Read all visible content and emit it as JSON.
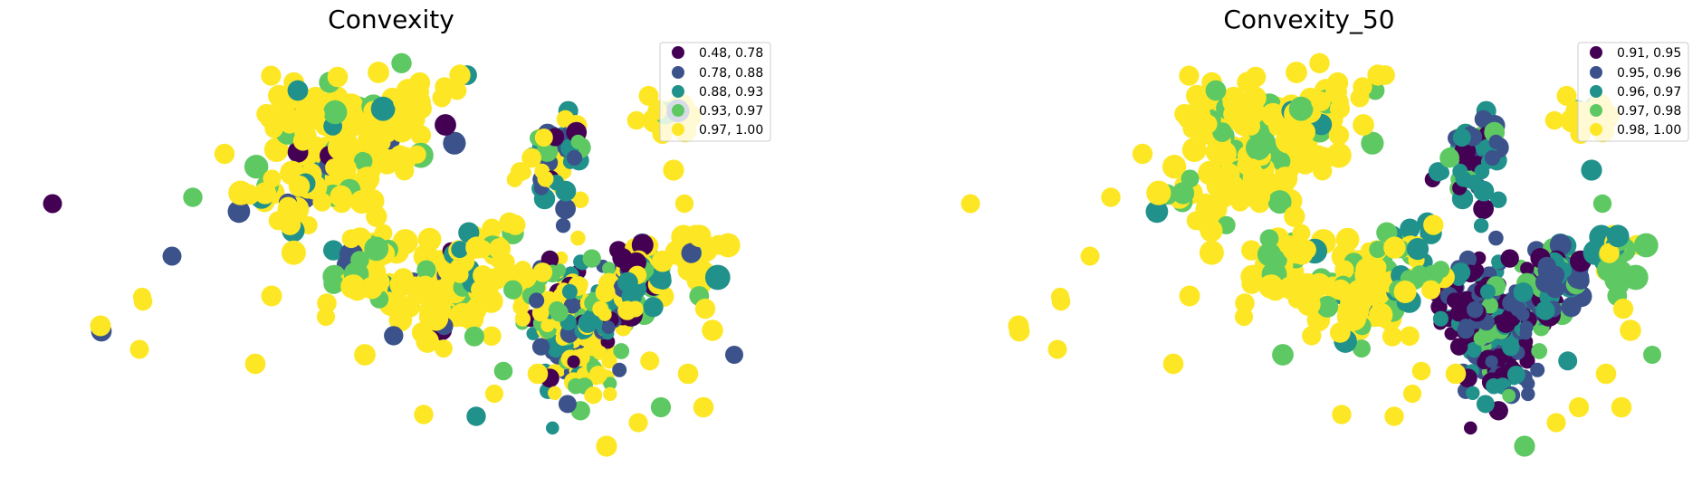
{
  "figure": {
    "panels": [
      {
        "title": "Convexity",
        "legend": [
          {
            "label": "0.48, 0.78",
            "color": "#440154"
          },
          {
            "label": "0.78, 0.88",
            "color": "#3b528b"
          },
          {
            "label": "0.88, 0.93",
            "color": "#21918c"
          },
          {
            "label": "0.93, 0.97",
            "color": "#5ec962"
          },
          {
            "label": "0.97, 1.00",
            "color": "#fde725"
          }
        ]
      },
      {
        "title": "Convexity_50",
        "legend": [
          {
            "label": "0.91, 0.95",
            "color": "#440154"
          },
          {
            "label": "0.95, 0.96",
            "color": "#3b528b"
          },
          {
            "label": "0.96, 0.97",
            "color": "#21918c"
          },
          {
            "label": "0.97, 0.98",
            "color": "#5ec962"
          },
          {
            "label": "0.98, 1.00",
            "color": "#fde725"
          }
        ]
      }
    ],
    "legend_placement": "top-right",
    "colormap": "viridis"
  }
}
